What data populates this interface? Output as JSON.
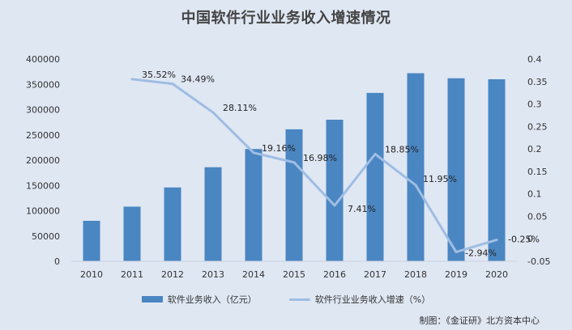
{
  "chart_data": {
    "type": "bar+line",
    "title": "中国软件行业业务收入增速情况",
    "categories": [
      "2010",
      "2011",
      "2012",
      "2013",
      "2014",
      "2015",
      "2016",
      "2017",
      "2018",
      "2019",
      "2020"
    ],
    "series": [
      {
        "name": "软件业务收入（亿元）",
        "type": "bar",
        "axis": "left",
        "color": "#4a86c2",
        "values": [
          80000,
          108000,
          146000,
          186000,
          222000,
          261000,
          280000,
          333000,
          372000,
          362000,
          360000
        ]
      },
      {
        "name": "软件行业业务收入增速（%）",
        "type": "line",
        "axis": "right",
        "color": "#9fbde3",
        "values": [
          null,
          0.3552,
          0.3449,
          0.2811,
          0.1916,
          0.1698,
          0.0741,
          0.1885,
          0.1195,
          -0.0294,
          -0.0025
        ],
        "labels": [
          null,
          "35.52%",
          "34.49%",
          "28.11%",
          "19.16%",
          "16.98%",
          "7.41%",
          "18.85%",
          "11.95%",
          "-2.94%",
          "-0.25%"
        ]
      }
    ],
    "y_left": {
      "min": 0,
      "max": 400000,
      "ticks": [
        "0",
        "50000",
        "100000",
        "150000",
        "200000",
        "250000",
        "300000",
        "350000",
        "400000"
      ]
    },
    "y_right": {
      "min": -0.05,
      "max": 0.4,
      "ticks": [
        "-0.05",
        "0",
        "0.05",
        "0.1",
        "0.15",
        "0.2",
        "0.25",
        "0.3",
        "0.35",
        "0.4"
      ]
    },
    "grid": false,
    "legend_position": "bottom"
  },
  "source": "制图：《金证研》北方资本中心"
}
